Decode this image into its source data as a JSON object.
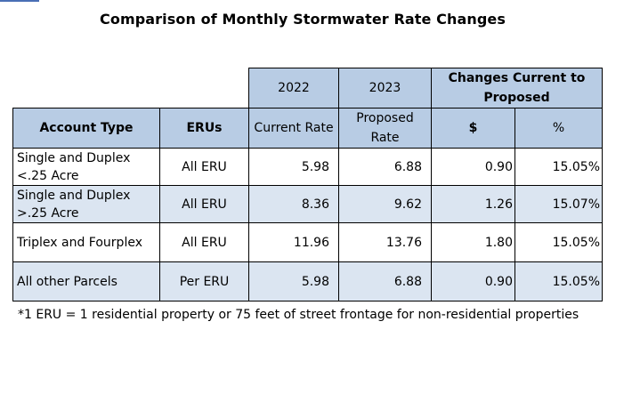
{
  "title": "Comparison of Monthly Stormwater Rate Changes",
  "header": {
    "year_current": "2022",
    "year_proposed": "2023",
    "changes_group": "Changes Current to Proposed",
    "col_account_type": "Account Type",
    "col_erus": "ERUs",
    "col_current_rate": "Current Rate",
    "col_proposed_rate": "Proposed Rate",
    "col_change_dollar": "$",
    "col_change_pct": "%"
  },
  "rows": [
    {
      "account_type": "Single and Duplex <.25 Acre",
      "erus": "All ERU",
      "current": "5.98",
      "proposed": "6.88",
      "change_dollar": "0.90",
      "change_pct": "15.05%"
    },
    {
      "account_type": "Single and Duplex >.25 Acre",
      "erus": "All ERU",
      "current": "8.36",
      "proposed": "9.62",
      "change_dollar": "1.26",
      "change_pct": "15.07%"
    },
    {
      "account_type": "Triplex and Fourplex",
      "erus": "All ERU",
      "current": "11.96",
      "proposed": "13.76",
      "change_dollar": "1.80",
      "change_pct": "15.05%"
    },
    {
      "account_type": "All other Parcels",
      "erus": "Per ERU",
      "current": "5.98",
      "proposed": "6.88",
      "change_dollar": "0.90",
      "change_pct": "15.05%"
    }
  ],
  "footnote": "*1 ERU = 1 residential property or 75 feet of street frontage for non-residential properties"
}
